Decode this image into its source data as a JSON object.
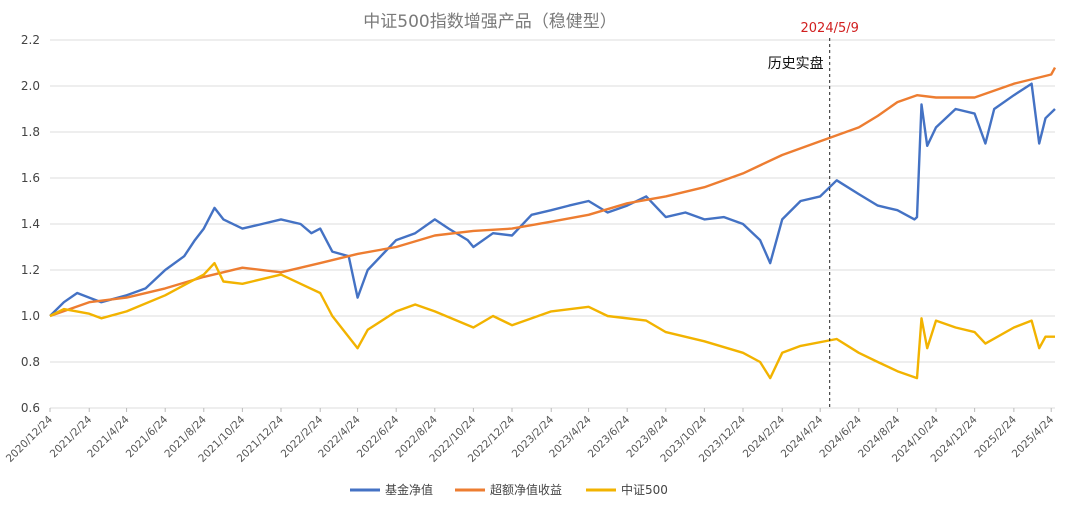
{
  "chart_data": {
    "type": "line",
    "title": "中证500指数增强产品（稳健型）",
    "xlabel": "",
    "ylabel": "",
    "ylim": [
      0.6,
      2.2
    ],
    "yticks": [
      "0.6",
      "0.8",
      "1.0",
      "1.2",
      "1.4",
      "1.6",
      "1.8",
      "2.0",
      "2.2"
    ],
    "xlim": [
      "2020-12-24",
      "2025-04-24"
    ],
    "x_tick_labels": [
      "2020/12/24",
      "2021/2/24",
      "2021/4/24",
      "2021/6/24",
      "2021/8/24",
      "2021/10/24",
      "2021/12/24",
      "2022/2/24",
      "2022/4/24",
      "2022/6/24",
      "2022/8/24",
      "2022/10/24",
      "2022/12/24",
      "2023/2/24",
      "2023/4/24",
      "2023/6/24",
      "2023/8/24",
      "2023/10/24",
      "2023/12/24",
      "2024/2/24",
      "2024/4/24",
      "2024/6/24",
      "2024/8/24",
      "2024/10/24",
      "2024/12/24",
      "2025/2/24",
      "2025/4/24"
    ],
    "grid": "horizontal",
    "legend_position": "bottom",
    "annotation": {
      "date": "2024/5/9",
      "x": "2024-05-09",
      "label": "历史实盘",
      "label_color": "#d11f1f"
    },
    "series": [
      {
        "name": "基金净值",
        "color": "#4472c4",
        "points": [
          [
            "2020-12-24",
            1.0
          ],
          [
            "2021-01-15",
            1.06
          ],
          [
            "2021-02-05",
            1.1
          ],
          [
            "2021-02-24",
            1.08
          ],
          [
            "2021-03-15",
            1.06
          ],
          [
            "2021-04-24",
            1.09
          ],
          [
            "2021-05-24",
            1.12
          ],
          [
            "2021-06-24",
            1.2
          ],
          [
            "2021-07-24",
            1.26
          ],
          [
            "2021-08-10",
            1.33
          ],
          [
            "2021-08-24",
            1.38
          ],
          [
            "2021-09-10",
            1.47
          ],
          [
            "2021-09-24",
            1.42
          ],
          [
            "2021-10-24",
            1.38
          ],
          [
            "2021-11-24",
            1.4
          ],
          [
            "2021-12-24",
            1.42
          ],
          [
            "2022-01-24",
            1.4
          ],
          [
            "2022-02-10",
            1.36
          ],
          [
            "2022-02-24",
            1.38
          ],
          [
            "2022-03-15",
            1.28
          ],
          [
            "2022-04-10",
            1.26
          ],
          [
            "2022-04-24",
            1.08
          ],
          [
            "2022-05-10",
            1.2
          ],
          [
            "2022-06-24",
            1.33
          ],
          [
            "2022-07-24",
            1.36
          ],
          [
            "2022-08-24",
            1.42
          ],
          [
            "2022-09-15",
            1.38
          ],
          [
            "2022-10-15",
            1.33
          ],
          [
            "2022-10-24",
            1.3
          ],
          [
            "2022-11-24",
            1.36
          ],
          [
            "2022-12-24",
            1.35
          ],
          [
            "2023-01-24",
            1.44
          ],
          [
            "2023-02-24",
            1.46
          ],
          [
            "2023-03-24",
            1.48
          ],
          [
            "2023-04-24",
            1.5
          ],
          [
            "2023-05-24",
            1.45
          ],
          [
            "2023-06-24",
            1.48
          ],
          [
            "2023-07-24",
            1.52
          ],
          [
            "2023-08-24",
            1.43
          ],
          [
            "2023-09-24",
            1.45
          ],
          [
            "2023-10-24",
            1.42
          ],
          [
            "2023-11-24",
            1.43
          ],
          [
            "2023-12-24",
            1.4
          ],
          [
            "2024-01-20",
            1.33
          ],
          [
            "2024-02-05",
            1.23
          ],
          [
            "2024-02-24",
            1.42
          ],
          [
            "2024-03-24",
            1.5
          ],
          [
            "2024-04-24",
            1.52
          ],
          [
            "2024-05-20",
            1.59
          ],
          [
            "2024-06-24",
            1.53
          ],
          [
            "2024-07-24",
            1.48
          ],
          [
            "2024-08-24",
            1.46
          ],
          [
            "2024-09-20",
            1.42
          ],
          [
            "2024-09-24",
            1.43
          ],
          [
            "2024-10-01",
            1.92
          ],
          [
            "2024-10-10",
            1.74
          ],
          [
            "2024-10-24",
            1.82
          ],
          [
            "2024-11-24",
            1.9
          ],
          [
            "2024-12-24",
            1.88
          ],
          [
            "2025-01-10",
            1.75
          ],
          [
            "2025-01-24",
            1.9
          ],
          [
            "2025-02-24",
            1.96
          ],
          [
            "2025-03-24",
            2.01
          ],
          [
            "2025-04-05",
            1.75
          ],
          [
            "2025-04-15",
            1.86
          ],
          [
            "2025-04-30",
            1.9
          ]
        ]
      },
      {
        "name": "超额净值收益",
        "color": "#ed7d31",
        "points": [
          [
            "2020-12-24",
            1.0
          ],
          [
            "2021-02-24",
            1.06
          ],
          [
            "2021-04-24",
            1.08
          ],
          [
            "2021-06-24",
            1.12
          ],
          [
            "2021-08-24",
            1.17
          ],
          [
            "2021-10-24",
            1.21
          ],
          [
            "2021-12-24",
            1.19
          ],
          [
            "2022-02-24",
            1.23
          ],
          [
            "2022-04-24",
            1.27
          ],
          [
            "2022-06-24",
            1.3
          ],
          [
            "2022-08-24",
            1.35
          ],
          [
            "2022-10-24",
            1.37
          ],
          [
            "2022-12-24",
            1.38
          ],
          [
            "2023-02-24",
            1.41
          ],
          [
            "2023-04-24",
            1.44
          ],
          [
            "2023-06-24",
            1.49
          ],
          [
            "2023-08-24",
            1.52
          ],
          [
            "2023-10-24",
            1.56
          ],
          [
            "2023-12-24",
            1.62
          ],
          [
            "2024-02-24",
            1.7
          ],
          [
            "2024-04-24",
            1.76
          ],
          [
            "2024-06-24",
            1.82
          ],
          [
            "2024-07-24",
            1.87
          ],
          [
            "2024-08-24",
            1.93
          ],
          [
            "2024-09-24",
            1.96
          ],
          [
            "2024-10-24",
            1.95
          ],
          [
            "2024-12-24",
            1.95
          ],
          [
            "2025-02-24",
            2.01
          ],
          [
            "2025-04-24",
            2.05
          ],
          [
            "2025-04-30",
            2.08
          ]
        ]
      },
      {
        "name": "中证500",
        "color": "#f2b300",
        "points": [
          [
            "2020-12-24",
            1.0
          ],
          [
            "2021-01-15",
            1.03
          ],
          [
            "2021-02-24",
            1.01
          ],
          [
            "2021-03-15",
            0.99
          ],
          [
            "2021-04-24",
            1.02
          ],
          [
            "2021-06-24",
            1.09
          ],
          [
            "2021-08-24",
            1.18
          ],
          [
            "2021-09-10",
            1.23
          ],
          [
            "2021-09-24",
            1.15
          ],
          [
            "2021-10-24",
            1.14
          ],
          [
            "2021-12-24",
            1.18
          ],
          [
            "2022-01-24",
            1.14
          ],
          [
            "2022-02-24",
            1.1
          ],
          [
            "2022-03-15",
            1.0
          ],
          [
            "2022-04-24",
            0.86
          ],
          [
            "2022-05-10",
            0.94
          ],
          [
            "2022-06-24",
            1.02
          ],
          [
            "2022-07-24",
            1.05
          ],
          [
            "2022-08-24",
            1.02
          ],
          [
            "2022-10-24",
            0.95
          ],
          [
            "2022-11-24",
            1.0
          ],
          [
            "2022-12-24",
            0.96
          ],
          [
            "2023-02-24",
            1.02
          ],
          [
            "2023-04-24",
            1.04
          ],
          [
            "2023-05-24",
            1.0
          ],
          [
            "2023-07-24",
            0.98
          ],
          [
            "2023-08-24",
            0.93
          ],
          [
            "2023-10-24",
            0.89
          ],
          [
            "2023-12-24",
            0.84
          ],
          [
            "2024-01-20",
            0.8
          ],
          [
            "2024-02-05",
            0.73
          ],
          [
            "2024-02-24",
            0.84
          ],
          [
            "2024-03-24",
            0.87
          ],
          [
            "2024-05-20",
            0.9
          ],
          [
            "2024-06-24",
            0.84
          ],
          [
            "2024-07-24",
            0.8
          ],
          [
            "2024-08-24",
            0.76
          ],
          [
            "2024-09-24",
            0.73
          ],
          [
            "2024-10-01",
            0.99
          ],
          [
            "2024-10-10",
            0.86
          ],
          [
            "2024-10-24",
            0.98
          ],
          [
            "2024-11-24",
            0.95
          ],
          [
            "2024-12-24",
            0.93
          ],
          [
            "2025-01-10",
            0.88
          ],
          [
            "2025-02-24",
            0.95
          ],
          [
            "2025-03-24",
            0.98
          ],
          [
            "2025-04-05",
            0.86
          ],
          [
            "2025-04-15",
            0.91
          ],
          [
            "2025-04-30",
            0.91
          ]
        ]
      }
    ]
  }
}
